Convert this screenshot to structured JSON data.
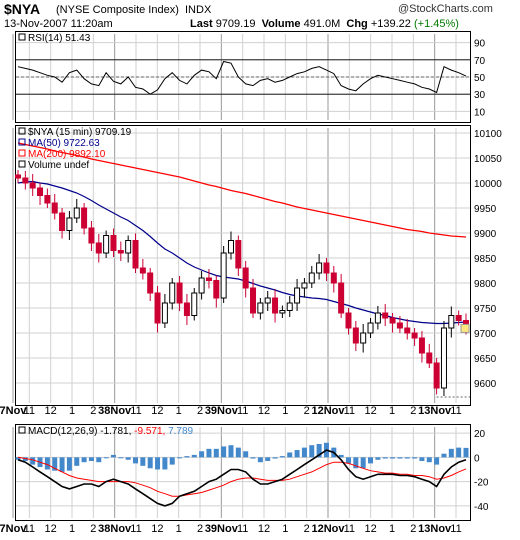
{
  "header": {
    "symbol": "$NYA",
    "name": "(NYSE Composite Index)",
    "exchange": "INDX",
    "watermark": "@StockCharts.com",
    "timestamp": "13-Nov-2007 11:20am",
    "last_label": "Last",
    "last_value": "9709.19",
    "volume_label": "Volume",
    "volume_value": "491.0M",
    "chg_label": "Chg",
    "chg_value": "+139.22",
    "chg_pct": "(+1.45%)"
  },
  "colors": {
    "up": "#000000",
    "down": "#cc0033",
    "ma50": "#00008b",
    "ma200": "#ff0000",
    "macd_line": "#000000",
    "signal_line": "#ff0000",
    "histogram": "#4488cc",
    "grid": "#d0d0d0"
  },
  "rsi_panel": {
    "legend": "RSI(14) 51.43",
    "y_ticks": [
      "90",
      "70",
      "50",
      "30",
      "10"
    ]
  },
  "price_panel": {
    "legend": [
      {
        "text": "$NYA (15 min) 9709.19",
        "color": "#000000"
      },
      {
        "text": "MA(50) 9722.63",
        "color": "#00008b"
      },
      {
        "text": "MA(200) 9892.10",
        "color": "#ff0000"
      },
      {
        "text": "Volume undef",
        "color": "#000000"
      }
    ],
    "y_ticks": [
      "10100",
      "10050",
      "10000",
      "9950",
      "9900",
      "9850",
      "9800",
      "9750",
      "9700",
      "9650",
      "9600"
    ]
  },
  "macd_panel": {
    "legend_main": "MACD(12,26,9) -1.781,",
    "legend_signal": "-9.571,",
    "legend_hist": "7.789",
    "y_ticks": [
      "20",
      "0",
      "-20",
      "-40"
    ]
  },
  "x_axis": {
    "labels": [
      "7Nov",
      "11",
      "12",
      "1",
      "2",
      "38Nov",
      "11",
      "12",
      "1",
      "2",
      "39Nov",
      "11",
      "12",
      "1",
      "2",
      "12Nov",
      "11",
      "12",
      "1",
      "2",
      "13Nov",
      "11"
    ]
  },
  "chart_data": {
    "type": "line",
    "title": "$NYA (NYSE Composite Index) INDX",
    "categories": [
      "7Nov",
      "11",
      "12",
      "1",
      "2",
      "38Nov",
      "11",
      "12",
      "1",
      "2",
      "39Nov",
      "11",
      "12",
      "1",
      "2",
      "12Nov",
      "11",
      "12",
      "1",
      "2",
      "13Nov",
      "11"
    ],
    "price": {
      "ylim": [
        9560,
        10110
      ],
      "close": [
        10010,
        10000,
        9990,
        9975,
        9960,
        9940,
        9905,
        9930,
        9950,
        9910,
        9880,
        9860,
        9895,
        9865,
        9860,
        9885,
        9830,
        9820,
        9780,
        9720,
        9760,
        9800,
        9760,
        9735,
        9780,
        9810,
        9805,
        9770,
        9860,
        9885,
        9830,
        9790,
        9740,
        9760,
        9770,
        9740,
        9745,
        9760,
        9790,
        9800,
        9820,
        9840,
        9820,
        9800,
        9740,
        9710,
        9680,
        9700,
        9720,
        9740,
        9730,
        9720,
        9710,
        9700,
        9690,
        9660,
        9640,
        9590,
        9710,
        9735,
        9725,
        9710
      ],
      "ma50": [
        10000,
        10002,
        10003,
        10000,
        9998,
        9994,
        9990,
        9985,
        9980,
        9973,
        9965,
        9956,
        9948,
        9940,
        9932,
        9925,
        9915,
        9905,
        9893,
        9880,
        9868,
        9860,
        9850,
        9840,
        9832,
        9826,
        9820,
        9815,
        9812,
        9810,
        9808,
        9804,
        9799,
        9794,
        9790,
        9786,
        9781,
        9777,
        9774,
        9772,
        9770,
        9769,
        9767,
        9763,
        9759,
        9755,
        9750,
        9746,
        9742,
        9738,
        9735,
        9731,
        9728,
        9725,
        9723,
        9721,
        9720,
        9719,
        9719,
        9720,
        9721,
        9722
      ],
      "ma200": [
        10080,
        10077,
        10074,
        10071,
        10068,
        10064,
        10061,
        10058,
        10055,
        10052,
        10048,
        10045,
        10042,
        10039,
        10036,
        10033,
        10030,
        10027,
        10024,
        10021,
        10018,
        10015,
        10012,
        10008,
        10004,
        10000,
        9996,
        9993,
        9989,
        9985,
        9982,
        9979,
        9975,
        9971,
        9967,
        9963,
        9960,
        9956,
        9952,
        9949,
        9946,
        9943,
        9940,
        9937,
        9934,
        9931,
        9928,
        9925,
        9922,
        9919,
        9916,
        9913,
        9910,
        9907,
        9905,
        9903,
        9900,
        9898,
        9896,
        9894,
        9893,
        9892
      ],
      "series": [
        {
          "name": "$NYA (15 min)",
          "last": 9709.19
        },
        {
          "name": "MA(50)",
          "last": 9722.63
        },
        {
          "name": "MA(200)",
          "last": 9892.1
        }
      ]
    },
    "rsi": {
      "ylim": [
        0,
        100
      ],
      "values": [
        62,
        60,
        58,
        55,
        52,
        50,
        44,
        55,
        58,
        48,
        42,
        40,
        55,
        45,
        42,
        50,
        38,
        36,
        30,
        35,
        48,
        55,
        46,
        42,
        52,
        58,
        56,
        48,
        68,
        66,
        50,
        42,
        40,
        46,
        48,
        44,
        46,
        50,
        54,
        56,
        60,
        62,
        58,
        54,
        40,
        36,
        34,
        42,
        48,
        52,
        50,
        48,
        46,
        44,
        42,
        38,
        36,
        32,
        62,
        58,
        55,
        51
      ]
    },
    "macd": {
      "ylim": [
        -50,
        25
      ],
      "macd": [
        -2,
        -4,
        -8,
        -12,
        -16,
        -20,
        -24,
        -26,
        -24,
        -22,
        -22,
        -24,
        -20,
        -18,
        -20,
        -22,
        -26,
        -30,
        -34,
        -38,
        -40,
        -38,
        -32,
        -30,
        -28,
        -24,
        -20,
        -18,
        -14,
        -10,
        -10,
        -12,
        -18,
        -22,
        -22,
        -20,
        -18,
        -14,
        -10,
        -6,
        -2,
        2,
        6,
        4,
        -2,
        -10,
        -16,
        -18,
        -16,
        -14,
        -14,
        -14,
        -15,
        -15,
        -16,
        -18,
        -20,
        -24,
        -14,
        -8,
        -4,
        -2
      ],
      "signal": [
        0,
        -1,
        -2,
        -4,
        -6,
        -9,
        -12,
        -15,
        -17,
        -18,
        -19,
        -20,
        -20,
        -20,
        -20,
        -20,
        -21,
        -23,
        -25,
        -28,
        -30,
        -32,
        -32,
        -31,
        -30,
        -29,
        -27,
        -25,
        -23,
        -20,
        -18,
        -17,
        -17,
        -18,
        -19,
        -19,
        -19,
        -18,
        -16,
        -14,
        -12,
        -9,
        -6,
        -4,
        -4,
        -5,
        -7,
        -9,
        -11,
        -12,
        -13,
        -13,
        -14,
        -14,
        -15,
        -15,
        -16,
        -18,
        -17,
        -15,
        -12,
        -9.571
      ],
      "histogram": [
        -2,
        -3,
        -6,
        -8,
        -10,
        -11,
        -12,
        -11,
        -7,
        -4,
        -3,
        -4,
        0,
        2,
        0,
        -2,
        -5,
        -7,
        -9,
        -10,
        -10,
        -6,
        0,
        1,
        2,
        5,
        7,
        7,
        9,
        10,
        8,
        5,
        -1,
        -4,
        -3,
        -1,
        1,
        4,
        6,
        8,
        10,
        11,
        12,
        8,
        2,
        -5,
        -9,
        -9,
        -5,
        -2,
        -1,
        -1,
        -1,
        -1,
        -1,
        -3,
        -4,
        -6,
        3,
        7,
        8,
        7.789
      ]
    }
  }
}
